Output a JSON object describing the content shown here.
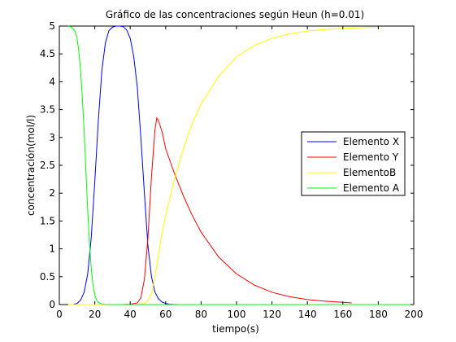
{
  "chart_data": {
    "type": "line",
    "title": "Gráfico de las concentraciones según Heun (h=0.01)",
    "xlabel": "tiempo(s)",
    "ylabel": "concentración(mol/l)",
    "xlim": [
      0,
      200
    ],
    "ylim": [
      0,
      5
    ],
    "x_ticks": [
      "0",
      "20",
      "40",
      "60",
      "80",
      "100",
      "120",
      "140",
      "160",
      "180",
      "200"
    ],
    "y_ticks": [
      "0",
      "0.5",
      "1",
      "1.5",
      "2",
      "2.5",
      "3",
      "3.5",
      "4",
      "4.5",
      "5"
    ],
    "grid": false,
    "legend_position": "right",
    "colors": {
      "axes": "#000000",
      "background": "#ffffff"
    },
    "series": [
      {
        "name": "Elemento X",
        "color": "#0000ff",
        "x": [
          5,
          8,
          10,
          12,
          14,
          16,
          18,
          20,
          22,
          24,
          26,
          28,
          30,
          32,
          34,
          36,
          38,
          40,
          42,
          44,
          46,
          48,
          50,
          52,
          54,
          56,
          58,
          60,
          62,
          64,
          66,
          68
        ],
        "y": [
          0,
          0.002,
          0.02,
          0.08,
          0.22,
          0.55,
          1.2,
          2.2,
          3.3,
          4.2,
          4.7,
          4.92,
          4.98,
          5.0,
          5.0,
          4.99,
          4.93,
          4.78,
          4.45,
          3.9,
          3.0,
          2.0,
          1.05,
          0.5,
          0.22,
          0.1,
          0.045,
          0.02,
          0.008,
          0.003,
          0.001,
          0
        ]
      },
      {
        "name": "Elemento Y",
        "color": "#ff0000",
        "x": [
          5,
          30,
          36,
          40,
          44,
          46,
          48,
          50,
          52,
          54,
          55,
          56,
          58,
          60,
          65,
          70,
          75,
          80,
          90,
          100,
          110,
          120,
          130,
          140,
          150,
          160,
          165
        ],
        "y": [
          0,
          0,
          0.001,
          0.005,
          0.03,
          0.12,
          0.45,
          1.2,
          2.3,
          3.15,
          3.35,
          3.3,
          3.1,
          2.8,
          2.35,
          1.95,
          1.6,
          1.3,
          0.85,
          0.55,
          0.35,
          0.22,
          0.14,
          0.09,
          0.06,
          0.04,
          0.03
        ]
      },
      {
        "name": "ElementoB",
        "color": "#ffff00",
        "x": [
          5,
          40,
          44,
          48,
          50,
          52,
          54,
          56,
          58,
          60,
          65,
          70,
          75,
          80,
          90,
          100,
          110,
          120,
          130,
          140,
          150,
          160,
          170,
          180
        ],
        "y": [
          0,
          0,
          0.002,
          0.02,
          0.07,
          0.2,
          0.5,
          0.9,
          1.3,
          1.6,
          2.25,
          2.8,
          3.25,
          3.6,
          4.1,
          4.45,
          4.65,
          4.78,
          4.86,
          4.91,
          4.94,
          4.96,
          4.97,
          4.98
        ]
      },
      {
        "name": "Elemento A",
        "color": "#00ff00",
        "x": [
          5,
          7,
          9,
          10,
          11,
          12,
          13,
          14,
          15,
          16,
          17,
          18,
          19,
          20,
          21,
          22,
          24,
          26,
          28,
          30,
          35,
          40,
          60,
          80,
          100,
          120,
          140,
          160,
          180,
          200
        ],
        "y": [
          5.0,
          4.98,
          4.9,
          4.78,
          4.55,
          4.2,
          3.7,
          3.1,
          2.4,
          1.7,
          1.1,
          0.65,
          0.35,
          0.18,
          0.08,
          0.04,
          0.01,
          0.003,
          0.001,
          0,
          0,
          0,
          0,
          0,
          0,
          0,
          0,
          0,
          0,
          0
        ]
      }
    ]
  }
}
